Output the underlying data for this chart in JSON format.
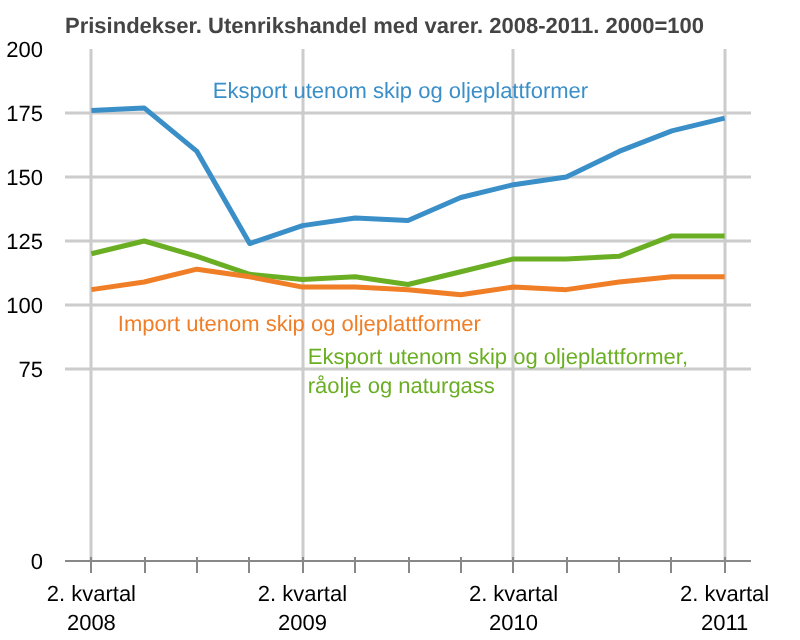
{
  "chart_data": {
    "type": "line",
    "title": "Prisindekser. Utenrikshandel med varer. 2008-2011. 2000=100",
    "categories": [
      "2. kvartal\n2008",
      null,
      null,
      null,
      "2. kvartal\n2009",
      null,
      null,
      null,
      "2. kvartal\n2010",
      null,
      null,
      null,
      "2. kvartal\n2011"
    ],
    "series": [
      {
        "name": "Eksport utenom skip og oljeplattformer",
        "color": "#3a8fc9",
        "values": [
          176,
          177,
          160,
          124,
          131,
          134,
          133,
          142,
          147,
          150,
          160,
          168,
          173
        ]
      },
      {
        "name": "Eksport utenom skip og oljeplattformer,\nråolje og naturgass",
        "color": "#6aaf23",
        "values": [
          120,
          125,
          119,
          112,
          110,
          111,
          108,
          113,
          118,
          118,
          119,
          127,
          127
        ]
      },
      {
        "name": "Import utenom skip og oljeplattformer",
        "color": "#f07e26",
        "values": [
          106,
          109,
          114,
          111,
          107,
          107,
          106,
          104,
          107,
          106,
          109,
          111,
          111
        ]
      }
    ],
    "ylim": [
      0,
      200
    ],
    "yticks": [
      0,
      75,
      100,
      125,
      150,
      175,
      200
    ],
    "grid": true,
    "marker": "none",
    "line_style": "solid"
  }
}
